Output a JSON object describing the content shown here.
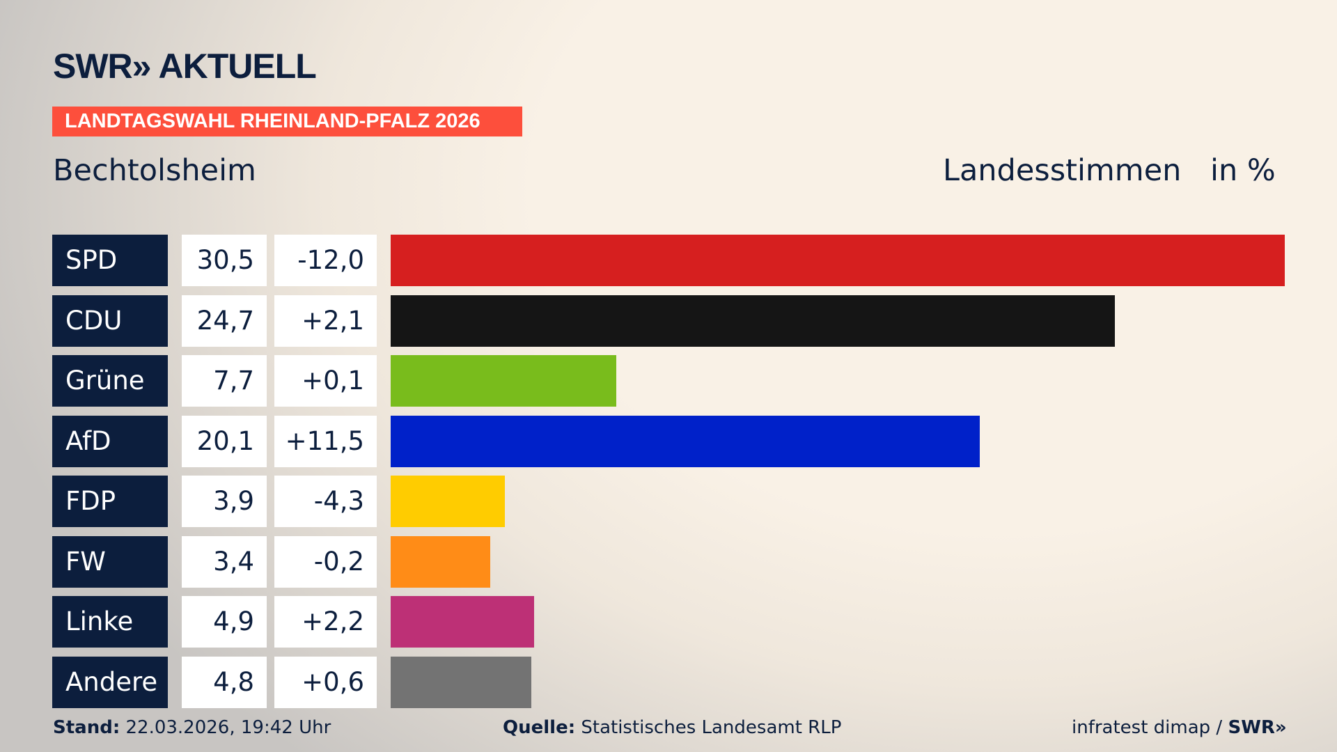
{
  "header": {
    "logo": "SWR» AKTUELL",
    "banner": "LANDTAGSWAHL RHEINLAND-PFALZ 2026",
    "place": "Bechtolsheim",
    "vote_type": "Landesstimmen",
    "unit": "in %"
  },
  "colors": {
    "navy": "#0c1e3d",
    "banner": "#fd4f3c"
  },
  "chart_data": {
    "type": "bar",
    "orientation": "horizontal",
    "categories": [
      "SPD",
      "CDU",
      "Grüne",
      "AfD",
      "FDP",
      "FW",
      "Linke",
      "Andere"
    ],
    "values": [
      30.5,
      24.7,
      7.7,
      20.1,
      3.9,
      3.4,
      4.9,
      4.8
    ],
    "value_labels": [
      "30,5",
      "24,7",
      "7,7",
      "20,1",
      "3,9",
      "3,4",
      "4,9",
      "4,8"
    ],
    "changes": [
      "-12,0",
      "+2,1",
      "+0,1",
      "+11,5",
      "-4,3",
      "-0,2",
      "+2,2",
      "+0,6"
    ],
    "colors": [
      "#d61f1f",
      "#151515",
      "#79bc1c",
      "#0021c9",
      "#ffcc00",
      "#ff8c17",
      "#bd3076",
      "#737373"
    ],
    "xlim": [
      0,
      30.5
    ]
  },
  "footer": {
    "stand_label": "Stand:",
    "stand_value": "22.03.2026, 19:42 Uhr",
    "source_label": "Quelle:",
    "source_value": "Statistisches Landesamt RLP",
    "credit": "infratest dimap /",
    "credit_logo": "SWR»"
  }
}
